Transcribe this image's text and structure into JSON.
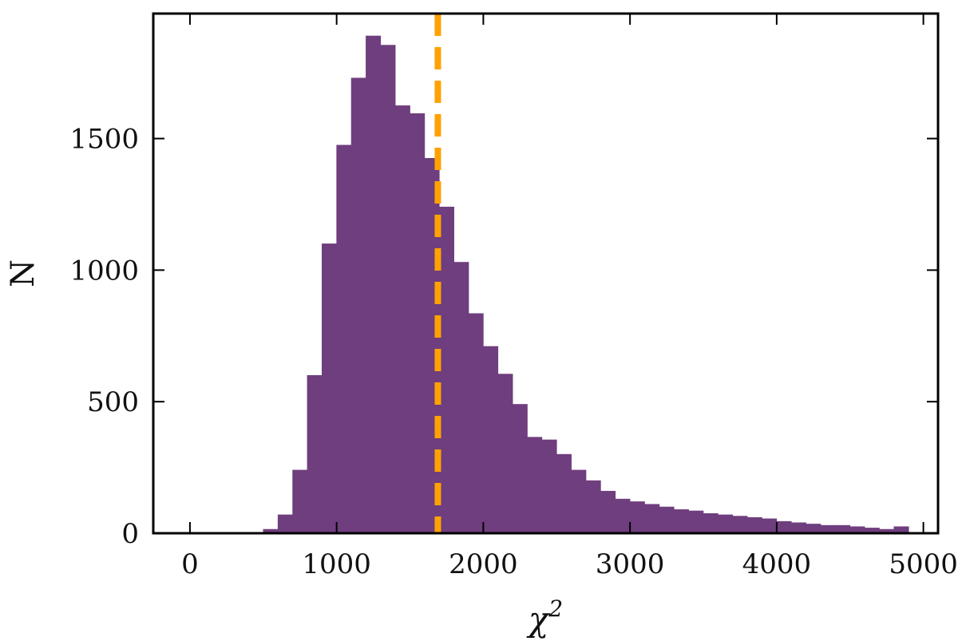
{
  "chart_data": {
    "type": "bar",
    "histogram": true,
    "xlabel_base": "χ",
    "xlabel_sup": "2",
    "ylabel": "N",
    "xlim": [
      -250,
      5100
    ],
    "ylim": [
      0,
      1975
    ],
    "xticks": [
      0,
      1000,
      2000,
      3000,
      4000,
      5000
    ],
    "yticks": [
      0,
      500,
      1000,
      1500
    ],
    "bin_width": 100,
    "bin_starts": [
      0,
      100,
      200,
      300,
      400,
      500,
      600,
      700,
      800,
      900,
      1000,
      1100,
      1200,
      1300,
      1400,
      1500,
      1600,
      1700,
      1800,
      1900,
      2000,
      2100,
      2200,
      2300,
      2400,
      2500,
      2600,
      2700,
      2800,
      2900,
      3000,
      3100,
      3200,
      3300,
      3400,
      3500,
      3600,
      3700,
      3800,
      3900,
      4000,
      4100,
      4200,
      4300,
      4400,
      4500,
      4600,
      4700,
      4800
    ],
    "counts": [
      0,
      0,
      0,
      0,
      0,
      15,
      70,
      240,
      600,
      1100,
      1475,
      1730,
      1890,
      1855,
      1625,
      1595,
      1425,
      1240,
      1030,
      835,
      710,
      605,
      490,
      365,
      355,
      300,
      240,
      200,
      160,
      130,
      120,
      110,
      100,
      90,
      85,
      75,
      70,
      65,
      60,
      55,
      45,
      40,
      35,
      30,
      30,
      25,
      20,
      15,
      25
    ],
    "grid": false,
    "bar_color": "#6f3e7e",
    "vline": {
      "x": 1690,
      "color": "#ffa200",
      "style": "dashed"
    }
  }
}
